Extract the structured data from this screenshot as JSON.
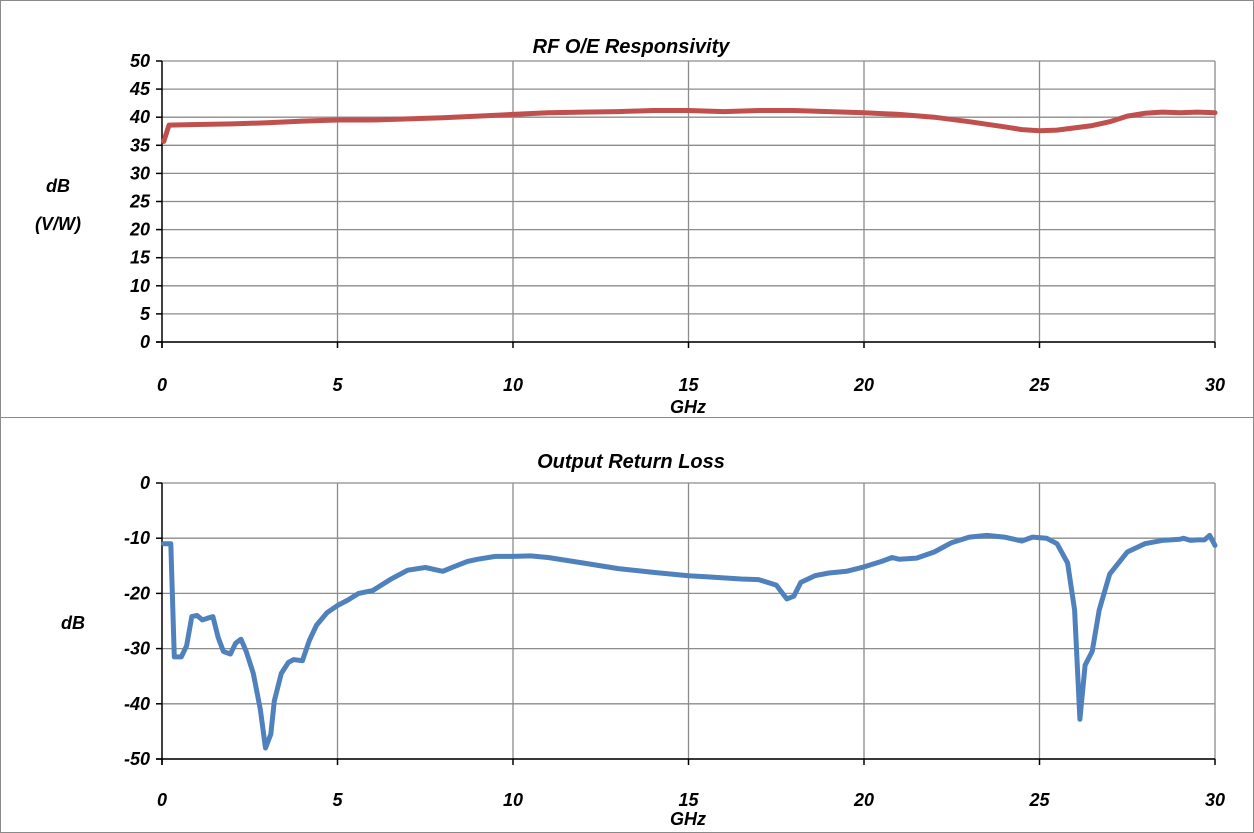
{
  "chart_data": [
    {
      "type": "line",
      "title": "RF O/E Responsivity",
      "xlabel": "GHz",
      "ylabel_lines": [
        "dB",
        "(V/W)"
      ],
      "xlim": [
        0,
        30
      ],
      "ylim": [
        0,
        50
      ],
      "xticks": [
        0,
        5,
        10,
        15,
        20,
        25,
        30
      ],
      "yticks": [
        0,
        5,
        10,
        15,
        20,
        25,
        30,
        35,
        40,
        45,
        50
      ],
      "grid": true,
      "series": [
        {
          "color": "#c0504d",
          "points": [
            [
              0.05,
              35.7
            ],
            [
              0.2,
              38.6
            ],
            [
              1,
              38.7
            ],
            [
              2,
              38.8
            ],
            [
              3,
              39.0
            ],
            [
              4,
              39.3
            ],
            [
              5,
              39.5
            ],
            [
              6,
              39.5
            ],
            [
              7,
              39.7
            ],
            [
              8,
              39.9
            ],
            [
              9,
              40.2
            ],
            [
              10,
              40.5
            ],
            [
              11,
              40.8
            ],
            [
              12,
              40.9
            ],
            [
              13,
              41.0
            ],
            [
              14,
              41.2
            ],
            [
              15,
              41.2
            ],
            [
              16,
              41.0
            ],
            [
              17,
              41.2
            ],
            [
              18,
              41.2
            ],
            [
              19,
              41.0
            ],
            [
              20,
              40.8
            ],
            [
              21,
              40.5
            ],
            [
              22,
              40.0
            ],
            [
              23,
              39.2
            ],
            [
              24,
              38.3
            ],
            [
              24.5,
              37.8
            ],
            [
              25,
              37.6
            ],
            [
              25.5,
              37.7
            ],
            [
              26,
              38.1
            ],
            [
              26.5,
              38.5
            ],
            [
              27,
              39.2
            ],
            [
              27.5,
              40.2
            ],
            [
              28,
              40.7
            ],
            [
              28.5,
              40.9
            ],
            [
              29,
              40.8
            ],
            [
              29.5,
              40.9
            ],
            [
              30,
              40.8
            ]
          ]
        }
      ]
    },
    {
      "type": "line",
      "title": "Output Return Loss",
      "xlabel": "GHz",
      "ylabel_lines": [
        "dB"
      ],
      "xlim": [
        0,
        30
      ],
      "ylim": [
        -50,
        0
      ],
      "xticks": [
        0,
        5,
        10,
        15,
        20,
        25,
        30
      ],
      "yticks": [
        0,
        -10,
        -20,
        -30,
        -40,
        -50
      ],
      "grid": true,
      "series": [
        {
          "color": "#4f81bd",
          "points": [
            [
              0.05,
              -11
            ],
            [
              0.25,
              -11
            ],
            [
              0.35,
              -31.5
            ],
            [
              0.55,
              -31.5
            ],
            [
              0.7,
              -29.5
            ],
            [
              0.85,
              -24.2
            ],
            [
              1.0,
              -24.0
            ],
            [
              1.15,
              -24.8
            ],
            [
              1.3,
              -24.5
            ],
            [
              1.45,
              -24.2
            ],
            [
              1.6,
              -28
            ],
            [
              1.75,
              -30.5
            ],
            [
              1.95,
              -31
            ],
            [
              2.1,
              -29
            ],
            [
              2.25,
              -28.3
            ],
            [
              2.4,
              -30.5
            ],
            [
              2.6,
              -34.5
            ],
            [
              2.8,
              -41
            ],
            [
              2.95,
              -48
            ],
            [
              3.1,
              -45.5
            ],
            [
              3.2,
              -39.5
            ],
            [
              3.4,
              -34.5
            ],
            [
              3.6,
              -32.5
            ],
            [
              3.75,
              -32
            ],
            [
              4.0,
              -32.2
            ],
            [
              4.2,
              -28.5
            ],
            [
              4.4,
              -25.8
            ],
            [
              4.7,
              -23.5
            ],
            [
              5,
              -22.2
            ],
            [
              5.3,
              -21.2
            ],
            [
              5.6,
              -20
            ],
            [
              6,
              -19.5
            ],
            [
              6.5,
              -17.5
            ],
            [
              7,
              -15.8
            ],
            [
              7.5,
              -15.3
            ],
            [
              8,
              -16
            ],
            [
              8.3,
              -15.2
            ],
            [
              8.7,
              -14.2
            ],
            [
              9,
              -13.8
            ],
            [
              9.5,
              -13.3
            ],
            [
              10,
              -13.3
            ],
            [
              10.5,
              -13.2
            ],
            [
              11,
              -13.5
            ],
            [
              12,
              -14.5
            ],
            [
              13,
              -15.5
            ],
            [
              14,
              -16.2
            ],
            [
              15,
              -16.8
            ],
            [
              15.5,
              -17.0
            ],
            [
              16,
              -17.2
            ],
            [
              16.5,
              -17.4
            ],
            [
              17,
              -17.5
            ],
            [
              17.5,
              -18.5
            ],
            [
              17.8,
              -21
            ],
            [
              18.0,
              -20.5
            ],
            [
              18.2,
              -18
            ],
            [
              18.6,
              -16.8
            ],
            [
              19,
              -16.3
            ],
            [
              19.5,
              -16.0
            ],
            [
              20,
              -15.2
            ],
            [
              20.5,
              -14.2
            ],
            [
              20.8,
              -13.5
            ],
            [
              21,
              -13.8
            ],
            [
              21.5,
              -13.6
            ],
            [
              22,
              -12.5
            ],
            [
              22.5,
              -10.8
            ],
            [
              23,
              -9.8
            ],
            [
              23.5,
              -9.5
            ],
            [
              24,
              -9.8
            ],
            [
              24.5,
              -10.5
            ],
            [
              24.8,
              -9.8
            ],
            [
              25.2,
              -10
            ],
            [
              25.5,
              -11
            ],
            [
              25.8,
              -14.5
            ],
            [
              26.0,
              -23
            ],
            [
              26.15,
              -42.8
            ],
            [
              26.3,
              -33
            ],
            [
              26.5,
              -30.5
            ],
            [
              26.7,
              -23
            ],
            [
              27,
              -16.5
            ],
            [
              27.5,
              -12.5
            ],
            [
              28,
              -11
            ],
            [
              28.5,
              -10.4
            ],
            [
              29,
              -10.2
            ],
            [
              29.1,
              -10.0
            ],
            [
              29.3,
              -10.4
            ],
            [
              29.5,
              -10.3
            ],
            [
              29.7,
              -10.3
            ],
            [
              29.85,
              -9.5
            ],
            [
              30,
              -11.3
            ]
          ]
        }
      ]
    }
  ]
}
